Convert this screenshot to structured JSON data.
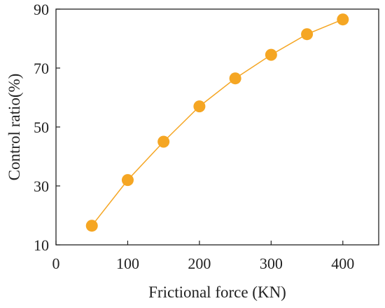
{
  "chart_data": {
    "type": "line",
    "title": "",
    "xlabel": "Frictional force (KN)",
    "ylabel": "Control ratio(%)",
    "xlim": [
      0,
      450
    ],
    "ylim": [
      10,
      90
    ],
    "xticks": [
      0,
      100,
      200,
      300,
      400
    ],
    "yticks": [
      10,
      30,
      50,
      70,
      90
    ],
    "grid": false,
    "legend": "none",
    "series": [
      {
        "x": [
          50,
          100,
          150,
          200,
          250,
          300,
          350,
          400
        ],
        "y": [
          16.5,
          32,
          45,
          57,
          66.5,
          74.5,
          81.5,
          86.5
        ],
        "color": "#F5A623",
        "marker": "circle"
      }
    ]
  }
}
